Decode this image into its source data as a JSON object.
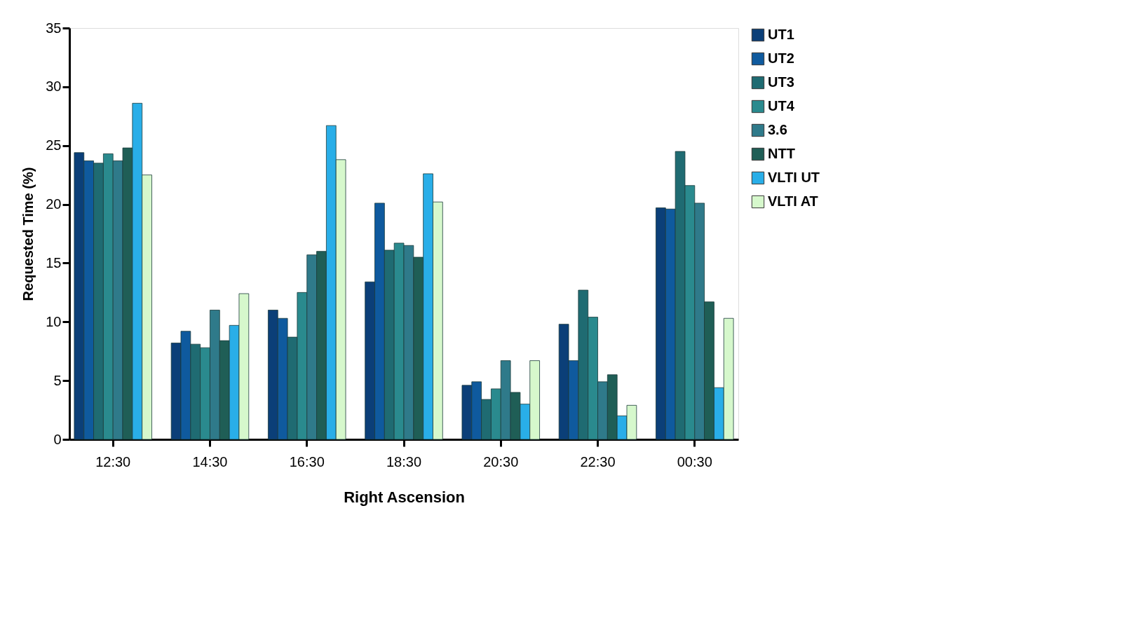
{
  "chart_data": {
    "type": "bar",
    "xlabel": "Right Ascension",
    "ylabel": "Requested Time (%)",
    "categories": [
      "12:30",
      "14:30",
      "16:30",
      "18:30",
      "20:30",
      "22:30",
      "00:30"
    ],
    "ylim": [
      0,
      35
    ],
    "yticks": [
      0,
      5,
      10,
      15,
      20,
      25,
      30,
      35
    ],
    "grid": false,
    "legend": "right",
    "series": [
      {
        "name": "UT1",
        "color": "#0b3f78",
        "values": [
          24.4,
          8.2,
          11.0,
          13.4,
          4.6,
          9.8,
          19.7
        ]
      },
      {
        "name": "UT2",
        "color": "#0f5a9e",
        "values": [
          23.7,
          9.2,
          10.3,
          20.1,
          4.9,
          6.7,
          19.6
        ]
      },
      {
        "name": "UT3",
        "color": "#1f6b72",
        "values": [
          23.5,
          8.1,
          8.7,
          16.1,
          3.4,
          12.7,
          24.5
        ]
      },
      {
        "name": "UT4",
        "color": "#2a8a8e",
        "values": [
          24.3,
          7.8,
          12.5,
          16.7,
          4.3,
          10.4,
          21.6
        ]
      },
      {
        "name": "3.6",
        "color": "#2f7a8a",
        "values": [
          23.7,
          11.0,
          15.7,
          16.5,
          6.7,
          4.9,
          20.1
        ]
      },
      {
        "name": "NTT",
        "color": "#1f5e56",
        "values": [
          24.8,
          8.4,
          16.0,
          15.5,
          4.0,
          5.5,
          11.7
        ]
      },
      {
        "name": "VLTI UT",
        "color": "#29aee8",
        "values": [
          28.6,
          9.7,
          26.7,
          22.6,
          3.0,
          2.0,
          4.4
        ]
      },
      {
        "name": "VLTI AT",
        "color": "#d6f8cc",
        "values": [
          22.5,
          12.4,
          23.8,
          20.2,
          6.7,
          2.9,
          10.3
        ]
      }
    ]
  }
}
